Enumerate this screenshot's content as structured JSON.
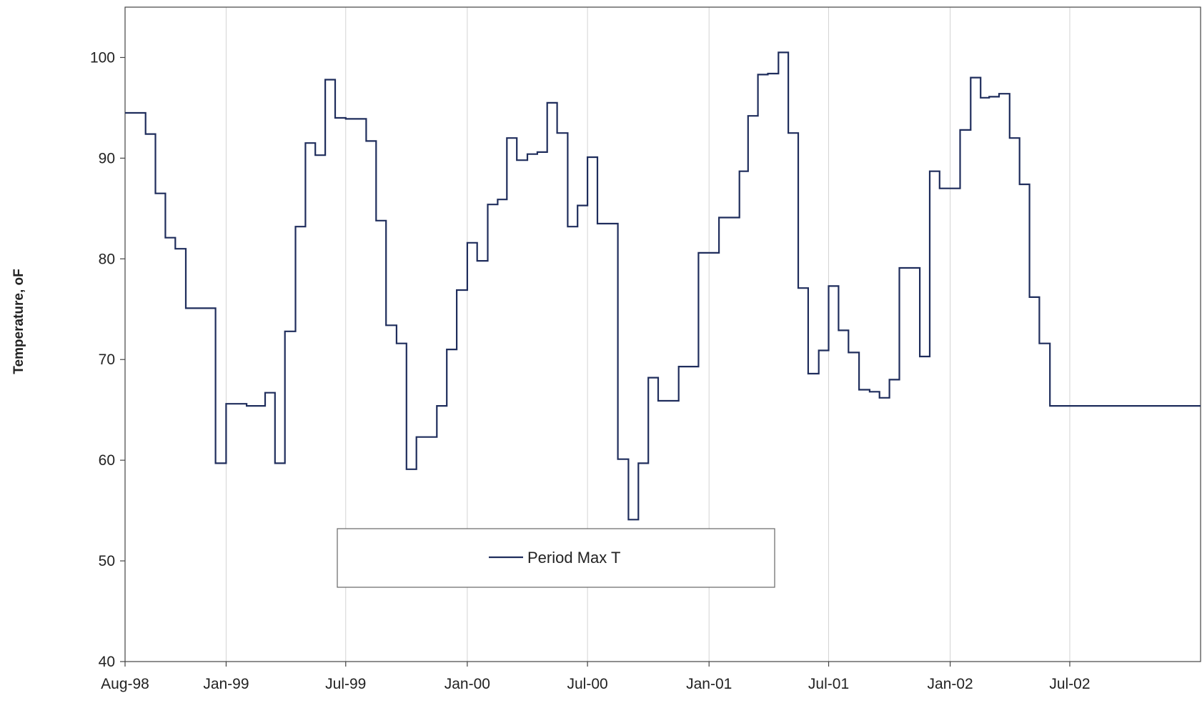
{
  "chart_data": {
    "type": "line",
    "step": true,
    "ylabel": "Temperature, oF",
    "xlabel": "",
    "ylim": [
      40,
      105
    ],
    "yticks": [
      40,
      50,
      60,
      70,
      80,
      90,
      100
    ],
    "xlim": [
      "1998-08-01",
      "2003-01-15"
    ],
    "xticks": [
      {
        "date": "1998-08-01",
        "label": "Aug-98"
      },
      {
        "date": "1999-01-01",
        "label": "Jan-99"
      },
      {
        "date": "1999-07-01",
        "label": "Jul-99"
      },
      {
        "date": "2000-01-01",
        "label": "Jan-00"
      },
      {
        "date": "2000-07-01",
        "label": "Jul-00"
      },
      {
        "date": "2001-01-01",
        "label": "Jan-01"
      },
      {
        "date": "2001-07-01",
        "label": "Jul-01"
      },
      {
        "date": "2002-01-01",
        "label": "Jan-02"
      },
      {
        "date": "2002-07-01",
        "label": "Jul-02"
      }
    ],
    "grid": {
      "x_major": true,
      "y_major": false
    },
    "legend": {
      "position": "lower-center",
      "entries": [
        "Period Max T"
      ]
    },
    "line_color": "#1f2d5c",
    "series": [
      {
        "name": "Period Max T",
        "x": [
          "1998-08-01",
          "1998-09-01",
          "1998-09-16",
          "1998-10-01",
          "1998-10-16",
          "1998-11-01",
          "1998-12-16",
          "1999-01-01",
          "1999-02-01",
          "1999-03-01",
          "1999-03-16",
          "1999-03-31",
          "1999-04-16",
          "1999-05-01",
          "1999-05-16",
          "1999-05-31",
          "1999-06-15",
          "1999-07-01",
          "1999-08-01",
          "1999-08-16",
          "1999-08-31",
          "1999-09-16",
          "1999-10-01",
          "1999-10-16",
          "1999-11-16",
          "1999-12-01",
          "1999-12-16",
          "2000-01-01",
          "2000-01-16",
          "2000-02-01",
          "2000-02-16",
          "2000-03-01",
          "2000-03-16",
          "2000-04-01",
          "2000-04-16",
          "2000-05-01",
          "2000-05-16",
          "2000-06-01",
          "2000-06-16",
          "2000-07-01",
          "2000-07-16",
          "2000-08-16",
          "2000-09-01",
          "2000-09-16",
          "2000-10-01",
          "2000-10-16",
          "2000-11-16",
          "2000-12-16",
          "2001-01-16",
          "2001-02-16",
          "2001-03-01",
          "2001-03-16",
          "2001-03-31",
          "2001-04-16",
          "2001-05-01",
          "2001-05-16",
          "2001-05-31",
          "2001-06-16",
          "2001-07-01",
          "2001-07-16",
          "2001-07-31",
          "2001-08-16",
          "2001-09-01",
          "2001-09-16",
          "2001-10-01",
          "2001-10-16",
          "2001-11-16",
          "2001-12-01",
          "2001-12-16",
          "2002-01-16",
          "2002-02-01",
          "2002-02-16",
          "2002-03-01",
          "2002-03-16",
          "2002-04-01",
          "2002-04-16",
          "2002-05-01",
          "2002-05-16",
          "2002-06-01",
          "2002-06-16",
          "2002-07-01",
          "2002-07-16",
          "2002-08-16",
          "2002-09-01",
          "2002-09-16",
          "2002-10-01",
          "2002-10-16",
          "2002-11-01",
          "2002-11-16",
          "2002-12-16"
        ],
        "y": [
          94.5,
          92.4,
          86.5,
          82.1,
          81.0,
          75.1,
          59.7,
          65.6,
          65.4,
          66.7,
          59.7,
          72.8,
          83.2,
          91.5,
          90.3,
          97.8,
          94.0,
          93.9,
          91.7,
          83.8,
          73.4,
          71.6,
          59.1,
          62.3,
          65.4,
          71.0,
          76.9,
          81.6,
          79.8,
          85.4,
          85.9,
          92.0,
          89.8,
          90.4,
          90.6,
          95.5,
          92.5,
          83.2,
          85.3,
          90.1,
          83.5,
          60.1,
          54.1,
          59.7,
          68.2,
          65.9,
          69.3,
          80.6,
          84.1,
          88.7,
          94.2,
          98.3,
          98.4,
          100.5,
          92.5,
          77.1,
          68.6,
          70.9,
          77.3,
          72.9,
          70.7,
          67.0,
          66.8,
          66.2,
          68.0,
          79.1,
          70.3,
          88.7,
          87.0,
          92.8,
          98.0,
          96.0,
          96.1,
          96.4,
          92.0,
          87.4,
          76.2,
          71.6,
          65.4,
          65.4,
          65.4,
          65.4,
          65.4,
          65.4,
          65.4,
          65.4,
          65.4,
          65.4,
          65.4,
          65.4
        ]
      }
    ]
  }
}
